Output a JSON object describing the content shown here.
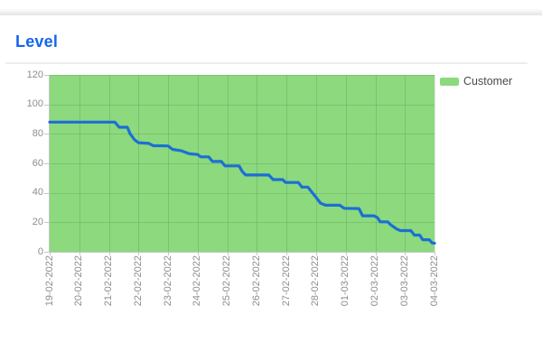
{
  "page": {
    "title": "Level"
  },
  "legend": {
    "label": "Customer"
  },
  "colors": {
    "title_text": "#1266f1",
    "line": "#1c6fd4",
    "plot_fill": "#8cd97e",
    "legend_swatch": "#8cd97e",
    "axis_text": "#8d8d8d",
    "legend_text": "#4b4b4b",
    "gridline": "#0000001a",
    "axis_line": "#c6c6c6"
  },
  "chart_data": {
    "type": "line",
    "title": "Level",
    "xlabel": "",
    "ylabel": "",
    "ylim": [
      0,
      120
    ],
    "yticks": [
      0,
      20,
      40,
      60,
      80,
      100,
      120
    ],
    "grid": true,
    "x_label_rotation": -90,
    "legend_position": "top-right",
    "categories": [
      "19-02-2022",
      "20-02-2022",
      "21-02-2022",
      "22-02-2022",
      "23-02-2022",
      "24-02-2022",
      "25-02-2022",
      "26-02-2022",
      "27-02-2022",
      "28-02-2022",
      "01-03-2022",
      "02-03-2022",
      "03-03-2022",
      "04-03-2022"
    ],
    "series": [
      {
        "name": "Customer",
        "color": "#1c6fd4",
        "fill_background": "#8cd97e",
        "values": [
          88,
          88,
          88,
          74,
          72,
          66,
          58,
          52,
          47,
          38,
          30,
          23,
          14,
          6
        ]
      }
    ],
    "dense_path": [
      [
        0,
        88
      ],
      [
        2.2,
        88
      ],
      [
        2.35,
        84.5
      ],
      [
        2.62,
        84.5
      ],
      [
        2.72,
        80
      ],
      [
        2.87,
        76
      ],
      [
        3,
        74
      ],
      [
        3.35,
        73.5
      ],
      [
        3.5,
        72
      ],
      [
        4,
        71.8
      ],
      [
        4.15,
        69.5
      ],
      [
        4.45,
        68.5
      ],
      [
        4.72,
        66.5
      ],
      [
        5,
        66
      ],
      [
        5.1,
        64.4
      ],
      [
        5.37,
        64.4
      ],
      [
        5.5,
        61.3
      ],
      [
        5.8,
        61.3
      ],
      [
        5.92,
        58.3
      ],
      [
        6.4,
        58.3
      ],
      [
        6.5,
        54.6
      ],
      [
        6.62,
        52.1
      ],
      [
        7.4,
        52.1
      ],
      [
        7.55,
        49
      ],
      [
        7.87,
        49
      ],
      [
        7.97,
        47
      ],
      [
        8.4,
        47
      ],
      [
        8.52,
        43.9
      ],
      [
        8.72,
        43.9
      ],
      [
        9,
        37
      ],
      [
        9.15,
        33
      ],
      [
        9.32,
        31.6
      ],
      [
        9.8,
        31.6
      ],
      [
        9.95,
        29.5
      ],
      [
        10.45,
        29.3
      ],
      [
        10.57,
        24.4
      ],
      [
        10.95,
        24.4
      ],
      [
        11.07,
        23.2
      ],
      [
        11.17,
        20.3
      ],
      [
        11.42,
        20.3
      ],
      [
        11.52,
        18.3
      ],
      [
        11.72,
        15.5
      ],
      [
        11.85,
        14.4
      ],
      [
        12.2,
        14.4
      ],
      [
        12.32,
        11.3
      ],
      [
        12.5,
        11.3
      ],
      [
        12.6,
        8.2
      ],
      [
        12.82,
        8.2
      ],
      [
        12.92,
        6
      ],
      [
        13,
        5.8
      ]
    ]
  }
}
